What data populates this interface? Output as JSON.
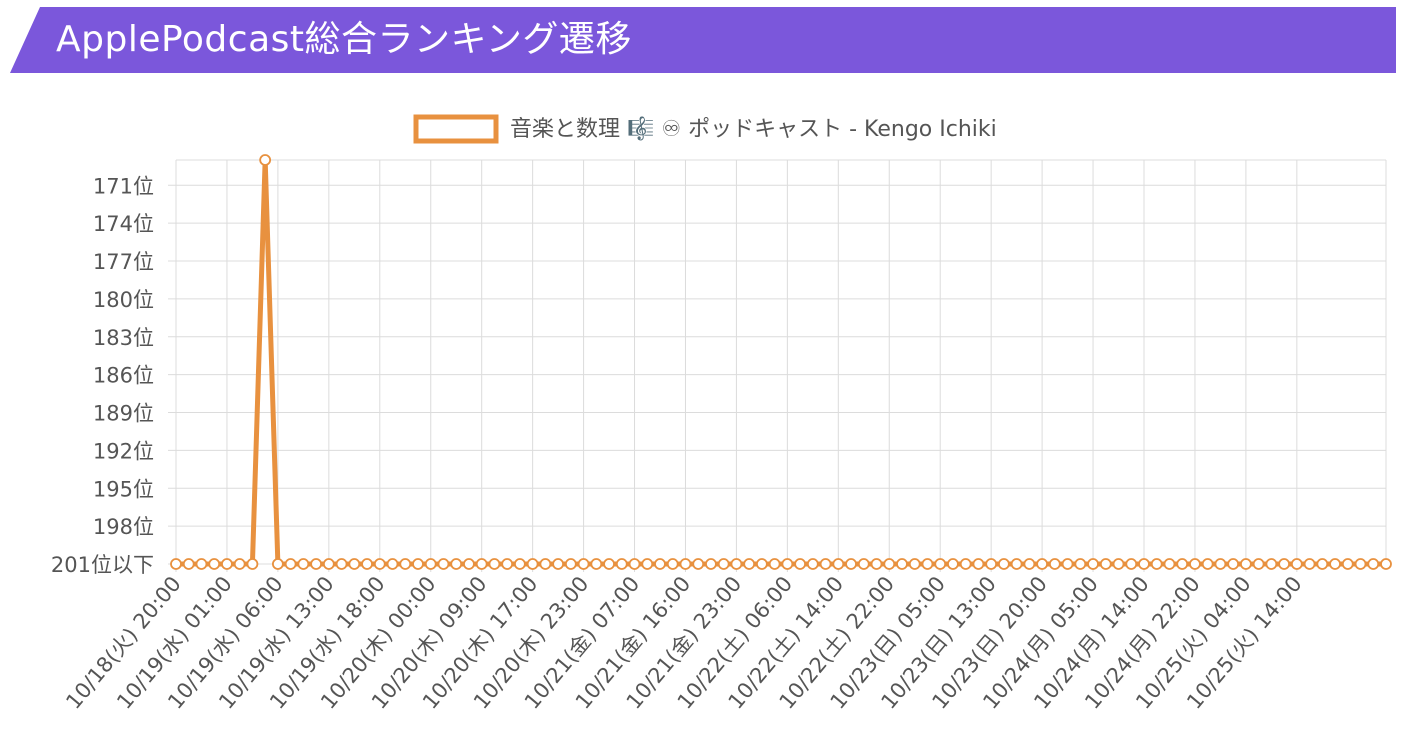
{
  "header": {
    "title": "ApplePodcast総合ランキング遷移"
  },
  "colors": {
    "banner": "#7b57db",
    "series": "#e8913f",
    "grid": "#dcdcdc",
    "text": "#555555"
  },
  "chart_data": {
    "type": "line",
    "legend_position": "top",
    "grid": true,
    "series": [
      {
        "name": "音楽と数理 🎼 ♾ ポッドキャスト - Kengo Ichiki",
        "values": [
          201,
          201,
          201,
          201,
          201,
          201,
          201,
          169,
          201,
          201,
          201,
          201,
          201,
          201,
          201,
          201,
          201,
          201,
          201,
          201,
          201,
          201,
          201,
          201,
          201,
          201,
          201,
          201,
          201,
          201,
          201,
          201,
          201,
          201,
          201,
          201,
          201,
          201,
          201,
          201,
          201,
          201,
          201,
          201,
          201,
          201,
          201,
          201,
          201,
          201,
          201,
          201,
          201,
          201,
          201,
          201,
          201,
          201,
          201,
          201,
          201,
          201,
          201,
          201,
          201,
          201,
          201,
          201,
          201,
          201,
          201,
          201,
          201,
          201,
          201,
          201,
          201,
          201,
          201,
          201,
          201,
          201,
          201,
          201,
          201,
          201,
          201,
          201,
          201,
          201,
          201,
          201,
          201,
          201,
          201,
          201
        ]
      }
    ],
    "x_tick_labels": [
      "10/18(火) 20:00",
      "10/19(水) 01:00",
      "10/19(水) 06:00",
      "10/19(水) 13:00",
      "10/19(水) 18:00",
      "10/20(木) 00:00",
      "10/20(木) 09:00",
      "10/20(木) 17:00",
      "10/20(木) 23:00",
      "10/21(金) 07:00",
      "10/21(金) 16:00",
      "10/21(金) 23:00",
      "10/22(土) 06:00",
      "10/22(土) 14:00",
      "10/22(土) 22:00",
      "10/23(日) 05:00",
      "10/23(日) 13:00",
      "10/23(日) 20:00",
      "10/24(月) 05:00",
      "10/24(月) 14:00",
      "10/24(月) 22:00",
      "10/25(火) 04:00",
      "10/25(火) 14:00"
    ],
    "y_axis": {
      "reversed": true,
      "range": [
        169,
        201
      ],
      "tick_values": [
        171,
        174,
        177,
        180,
        183,
        186,
        189,
        192,
        195,
        198,
        201
      ],
      "tick_labels": [
        "171位",
        "174位",
        "177位",
        "180位",
        "183位",
        "186位",
        "189位",
        "192位",
        "195位",
        "198位",
        "201位以下"
      ]
    }
  }
}
